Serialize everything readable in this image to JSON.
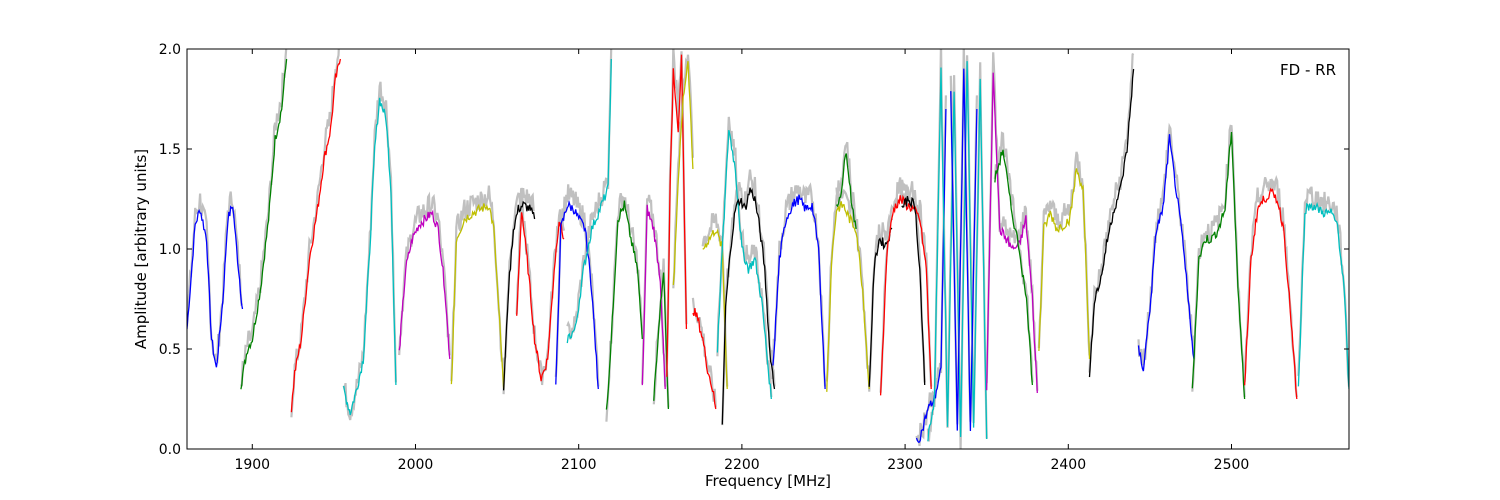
{
  "chart_data": {
    "type": "line",
    "title": "",
    "xlabel": "Frequency [MHz]",
    "ylabel": "Amplitude [arbitrary units]",
    "annotation": "FD - RR",
    "xlim": [
      1860,
      2572
    ],
    "ylim": [
      0.0,
      2.0
    ],
    "x_ticks": [
      1900,
      2000,
      2100,
      2200,
      2300,
      2400,
      2500
    ],
    "x_tick_labels": [
      "1900",
      "2000",
      "2100",
      "2200",
      "2300",
      "2400",
      "2500"
    ],
    "y_ticks": [
      0.0,
      0.5,
      1.0,
      1.5,
      2.0
    ],
    "y_tick_labels": [
      "0.0",
      "0.5",
      "1.0",
      "1.5",
      "2.0"
    ],
    "grid": false,
    "legend": "none",
    "background_color": "#c0c0c0",
    "segments": [
      {
        "color": "#0000ff",
        "x": [
          1860,
          1865,
          1868,
          1872,
          1875,
          1878,
          1882,
          1885,
          1888,
          1891,
          1894
        ],
        "y": [
          0.6,
          1.12,
          1.2,
          1.05,
          0.55,
          0.4,
          0.75,
          1.15,
          1.22,
          0.95,
          0.7
        ]
      },
      {
        "color": "#008000",
        "x": [
          1893,
          1897,
          1900,
          1905,
          1910,
          1914,
          1918,
          1921
        ],
        "y": [
          0.32,
          0.5,
          0.55,
          0.8,
          1.15,
          1.55,
          1.7,
          1.95
        ]
      },
      {
        "color": "#ff0000",
        "x": [
          1924,
          1926,
          1930,
          1935,
          1940,
          1944,
          1948,
          1951,
          1954
        ],
        "y": [
          0.2,
          0.38,
          0.55,
          0.95,
          1.2,
          1.45,
          1.6,
          1.85,
          1.95
        ]
      },
      {
        "color": "#00bfbf",
        "x": [
          1956,
          1960,
          1964,
          1968,
          1972,
          1975,
          1978,
          1982,
          1985,
          1988
        ],
        "y": [
          0.3,
          0.18,
          0.3,
          0.45,
          1.0,
          1.5,
          1.75,
          1.65,
          1.3,
          0.32
        ]
      },
      {
        "color": "#bf00bf",
        "x": [
          1990,
          1994,
          1998,
          2002,
          2006,
          2010,
          2014,
          2018,
          2021
        ],
        "y": [
          0.48,
          0.9,
          1.05,
          1.12,
          1.15,
          1.18,
          1.1,
          0.8,
          0.45
        ]
      },
      {
        "color": "#bfbf00",
        "x": [
          2022,
          2025,
          2030,
          2035,
          2040,
          2045,
          2048,
          2051,
          2054
        ],
        "y": [
          0.3,
          1.05,
          1.15,
          1.18,
          1.2,
          1.22,
          1.1,
          0.7,
          0.3
        ]
      },
      {
        "color": "#000000",
        "x": [
          2054,
          2057,
          2060,
          2063,
          2066,
          2070,
          2073
        ],
        "y": [
          0.3,
          0.8,
          1.1,
          1.2,
          1.22,
          1.2,
          1.15
        ]
      },
      {
        "color": "#ff0000",
        "x": [
          2062,
          2065,
          2069,
          2073,
          2077,
          2081,
          2085,
          2088,
          2091
        ],
        "y": [
          0.65,
          1.2,
          0.9,
          0.55,
          0.35,
          0.45,
          0.9,
          1.15,
          1.05
        ]
      },
      {
        "color": "#0000ff",
        "x": [
          2086,
          2089,
          2093,
          2097,
          2100,
          2104,
          2108,
          2112
        ],
        "y": [
          0.3,
          1.1,
          1.22,
          1.2,
          1.15,
          1.1,
          0.8,
          0.3
        ]
      },
      {
        "color": "#00bfbf",
        "x": [
          2093,
          2098,
          2103,
          2108,
          2113,
          2118,
          2120
        ],
        "y": [
          0.55,
          0.6,
          0.9,
          1.1,
          1.2,
          1.3,
          1.95
        ]
      },
      {
        "color": "#008000",
        "x": [
          2117,
          2120,
          2124,
          2128,
          2132,
          2136,
          2139
        ],
        "y": [
          0.18,
          0.55,
          1.15,
          1.22,
          1.05,
          0.9,
          0.55
        ]
      },
      {
        "color": "#bf00bf",
        "x": [
          2139,
          2142,
          2146,
          2150,
          2153
        ],
        "y": [
          0.3,
          1.2,
          1.1,
          0.85,
          0.3
        ]
      },
      {
        "color": "#008000",
        "x": [
          2146,
          2149,
          2152,
          2155
        ],
        "y": [
          0.25,
          0.6,
          0.9,
          0.2
        ]
      },
      {
        "color": "#ff0000",
        "x": [
          2154,
          2156,
          2158,
          2161,
          2163,
          2166
        ],
        "y": [
          0.35,
          1.3,
          1.9,
          1.6,
          1.95,
          0.6
        ]
      },
      {
        "color": "#bfbf00",
        "x": [
          2158,
          2161,
          2164,
          2167,
          2170
        ],
        "y": [
          0.8,
          1.35,
          1.75,
          1.95,
          1.4
        ]
      },
      {
        "color": "#ff0000",
        "x": [
          2170,
          2173,
          2176,
          2179,
          2182,
          2184
        ],
        "y": [
          0.7,
          0.65,
          0.55,
          0.4,
          0.3,
          0.2
        ]
      },
      {
        "color": "#bfbf00",
        "x": [
          2176,
          2180,
          2184,
          2188,
          2191
        ],
        "y": [
          1.0,
          1.05,
          1.1,
          1.0,
          0.3
        ]
      },
      {
        "color": "#00bfbf",
        "x": [
          2185,
          2188,
          2192,
          2196,
          2200,
          2204,
          2208,
          2212,
          2215,
          2218
        ],
        "y": [
          0.5,
          1.0,
          1.6,
          1.4,
          1.0,
          0.9,
          0.95,
          0.75,
          0.5,
          0.25
        ]
      },
      {
        "color": "#000000",
        "x": [
          2188,
          2190,
          2193,
          2196,
          2199,
          2202,
          2205,
          2208,
          2211,
          2214,
          2217,
          2220
        ],
        "y": [
          0.12,
          0.7,
          1.0,
          1.2,
          1.25,
          1.2,
          1.3,
          1.25,
          1.1,
          0.9,
          0.5,
          0.3
        ]
      },
      {
        "color": "#0000ff",
        "x": [
          2219,
          2223,
          2227,
          2231,
          2235,
          2239,
          2243,
          2247,
          2251
        ],
        "y": [
          0.4,
          0.95,
          1.15,
          1.22,
          1.25,
          1.2,
          1.22,
          1.0,
          0.3
        ]
      },
      {
        "color": "#bfbf00",
        "x": [
          2252,
          2255,
          2258,
          2262,
          2266,
          2270,
          2274,
          2278
        ],
        "y": [
          0.3,
          0.95,
          1.2,
          1.22,
          1.15,
          1.1,
          0.8,
          0.3
        ]
      },
      {
        "color": "#008000",
        "x": [
          2258,
          2261,
          2264,
          2267,
          2270
        ],
        "y": [
          1.2,
          1.3,
          1.5,
          1.25,
          1.1
        ]
      },
      {
        "color": "#000000",
        "x": [
          2278,
          2281,
          2284,
          2288,
          2292
        ],
        "y": [
          0.3,
          0.9,
          1.05,
          1.02,
          1.1
        ]
      },
      {
        "color": "#ff0000",
        "x": [
          2285,
          2289,
          2293,
          2297,
          2301,
          2305,
          2309,
          2313,
          2316
        ],
        "y": [
          0.28,
          1.0,
          1.2,
          1.25,
          1.22,
          1.2,
          1.15,
          0.9,
          0.3
        ]
      },
      {
        "color": "#000000",
        "x": [
          2298,
          2302,
          2306,
          2309,
          2312
        ],
        "y": [
          1.2,
          1.25,
          1.22,
          0.9,
          0.32
        ]
      },
      {
        "color": "#0000ff",
        "x": [
          2307,
          2310,
          2314,
          2318,
          2322,
          2325
        ],
        "y": [
          0.03,
          0.08,
          0.2,
          0.25,
          0.4,
          1.7
        ]
      },
      {
        "color": "#00bfbf",
        "x": [
          2314,
          2318,
          2322,
          2326,
          2330,
          2334,
          2338,
          2342,
          2346,
          2350
        ],
        "y": [
          0.05,
          0.25,
          1.9,
          0.1,
          1.8,
          0.05,
          1.95,
          0.1,
          1.85,
          0.05
        ]
      },
      {
        "color": "#0000ff",
        "x": [
          2328,
          2332,
          2336,
          2340,
          2344
        ],
        "y": [
          1.8,
          0.08,
          1.9,
          0.1,
          1.7
        ]
      },
      {
        "color": "#bf00bf",
        "x": [
          2350,
          2354,
          2358,
          2362,
          2366,
          2370,
          2374,
          2378,
          2381
        ],
        "y": [
          0.3,
          1.9,
          1.1,
          1.05,
          1.0,
          1.02,
          1.15,
          0.75,
          0.28
        ]
      },
      {
        "color": "#008000",
        "x": [
          2355,
          2360,
          2365,
          2370,
          2375,
          2378
        ],
        "y": [
          1.35,
          1.5,
          1.2,
          1.0,
          0.7,
          0.32
        ]
      },
      {
        "color": "#bfbf00",
        "x": [
          2382,
          2385,
          2389,
          2393,
          2397,
          2401,
          2405,
          2409,
          2413
        ],
        "y": [
          0.5,
          1.1,
          1.18,
          1.1,
          1.12,
          1.15,
          1.4,
          1.3,
          0.45
        ]
      },
      {
        "color": "#000000",
        "x": [
          2413,
          2416,
          2420,
          2424,
          2428,
          2432,
          2436,
          2440
        ],
        "y": [
          0.35,
          0.75,
          0.85,
          1.05,
          1.2,
          1.3,
          1.5,
          1.9
        ]
      },
      {
        "color": "#0000ff",
        "x": [
          2443,
          2446,
          2450,
          2454,
          2458,
          2462,
          2466,
          2470,
          2474,
          2477
        ],
        "y": [
          0.5,
          0.4,
          0.7,
          1.1,
          1.2,
          1.55,
          1.3,
          1.05,
          0.7,
          0.45
        ]
      },
      {
        "color": "#008000",
        "x": [
          2476,
          2480,
          2484,
          2488,
          2492,
          2496,
          2500,
          2504,
          2508
        ],
        "y": [
          0.3,
          0.95,
          1.05,
          1.05,
          1.1,
          1.2,
          1.6,
          0.8,
          0.25
        ]
      },
      {
        "color": "#ff0000",
        "x": [
          2508,
          2512,
          2516,
          2520,
          2524,
          2528,
          2532,
          2536,
          2540
        ],
        "y": [
          0.3,
          0.95,
          1.2,
          1.25,
          1.28,
          1.25,
          1.1,
          0.7,
          0.25
        ]
      },
      {
        "color": "#00bfbf",
        "x": [
          2541,
          2545,
          2549,
          2553,
          2557,
          2561,
          2565,
          2569,
          2572
        ],
        "y": [
          0.3,
          1.2,
          1.22,
          1.2,
          1.18,
          1.18,
          1.12,
          0.8,
          0.3
        ]
      }
    ]
  }
}
